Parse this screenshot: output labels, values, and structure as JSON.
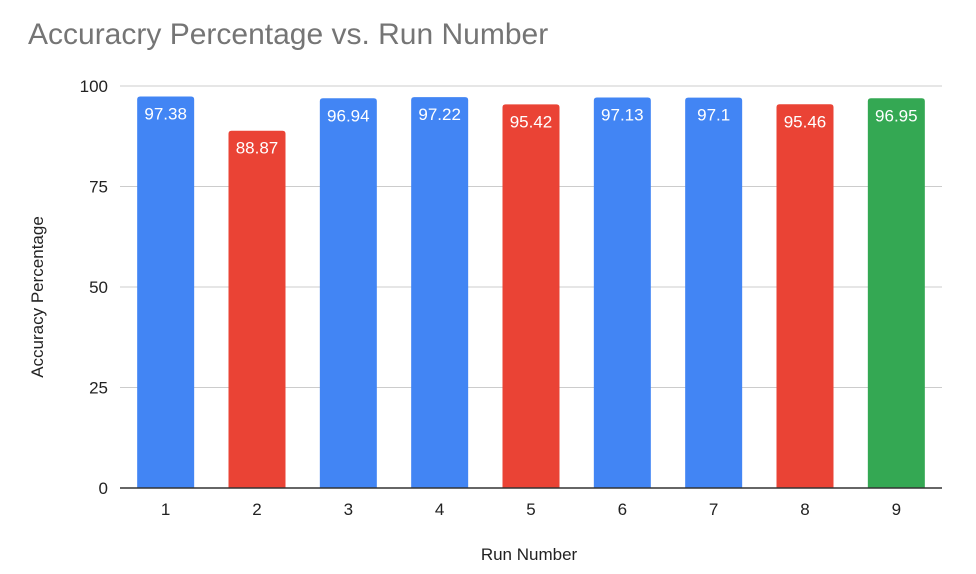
{
  "chart_data": {
    "type": "bar",
    "title": "Accuracry Percentage vs. Run Number",
    "xlabel": "Run Number",
    "ylabel": "Accuracy Percentage",
    "ylim": [
      0,
      100
    ],
    "yticks": [
      "0",
      "25",
      "50",
      "75",
      "100"
    ],
    "grid": true,
    "categories": [
      "1",
      "2",
      "3",
      "4",
      "5",
      "6",
      "7",
      "8",
      "9"
    ],
    "values": [
      97.38,
      88.87,
      96.94,
      97.22,
      95.42,
      97.13,
      97.1,
      95.46,
      96.95
    ],
    "data_labels": [
      "97.38",
      "88.87",
      "96.94",
      "97.22",
      "95.42",
      "97.13",
      "97.1",
      "95.46",
      "96.95"
    ],
    "bar_colors": [
      "#4285f4",
      "#ea4335",
      "#4285f4",
      "#4285f4",
      "#ea4335",
      "#4285f4",
      "#4285f4",
      "#ea4335",
      "#34a853"
    ],
    "gridline_color": "#cccccc",
    "axis_color": "#333333"
  }
}
